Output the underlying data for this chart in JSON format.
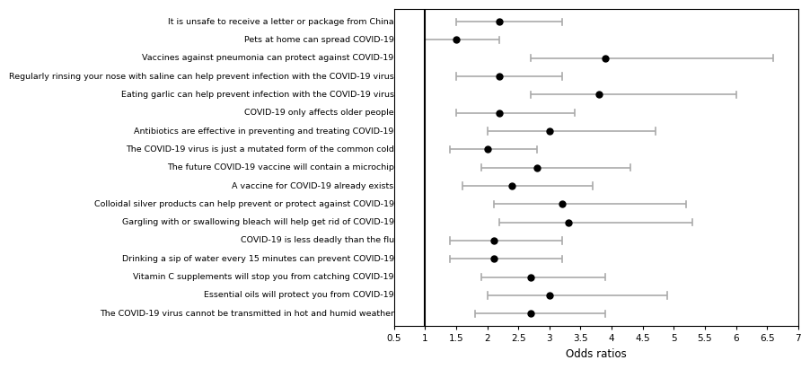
{
  "labels": [
    "It is unsafe to receive a letter or package from China",
    "Pets at home can spread COVID-19",
    "Vaccines against pneumonia can protect against COVID-19",
    "Regularly rinsing your nose with saline can help prevent infection with the COVID-19 virus",
    "Eating garlic can help prevent infection with the COVID-19 virus",
    "COVID-19 only affects older people",
    "Antibiotics are effective in preventing and treating COVID-19",
    "The COVID-19 virus is just a mutated form of the common cold",
    "The future COVID-19 vaccine will contain a microchip",
    "A vaccine for COVID-19 already exists",
    "Colloidal silver products can help prevent or protect against COVID-19",
    "Gargling with or swallowing bleach will help get rid of COVID-19",
    "COVID-19 is less deadly than the flu",
    "Drinking a sip of water every 15 minutes can prevent COVID-19",
    "Vitamin C supplements will stop you from catching COVID-19",
    "Essential oils will protect you from COVID-19",
    "The COVID-19 virus cannot be transmitted in hot and humid weather"
  ],
  "or": [
    2.2,
    1.5,
    3.9,
    2.2,
    3.8,
    2.2,
    3.0,
    2.0,
    2.8,
    2.4,
    3.2,
    3.3,
    2.1,
    2.1,
    2.7,
    3.0,
    2.7
  ],
  "ci_low": [
    1.5,
    1.0,
    2.7,
    1.5,
    2.7,
    1.5,
    2.0,
    1.4,
    1.9,
    1.6,
    2.1,
    2.2,
    1.4,
    1.4,
    1.9,
    2.0,
    1.8
  ],
  "ci_high": [
    3.2,
    2.2,
    6.6,
    3.2,
    6.0,
    3.4,
    4.7,
    2.8,
    4.3,
    3.7,
    5.2,
    5.3,
    3.2,
    3.2,
    3.9,
    4.9,
    3.9
  ],
  "xmin": 0.5,
  "xmax": 7.0,
  "xticks": [
    0.5,
    1.0,
    1.5,
    2.0,
    2.5,
    3.0,
    3.5,
    4.0,
    4.5,
    5.0,
    5.5,
    6.0,
    6.5,
    7.0
  ],
  "xtick_labels": [
    "0.5",
    "1",
    "1.5",
    "2",
    "2.5",
    "3",
    "3.5",
    "4",
    "4.5",
    "5",
    "5.5",
    "6",
    "6.5",
    "7"
  ],
  "ref_line": 1.0,
  "xlabel": "Odds ratios",
  "marker_color": "black",
  "marker_size": 5,
  "ci_color": "#aaaaaa",
  "ci_linewidth": 1.2,
  "cap_size": 0.18,
  "label_fontsize": 6.8,
  "tick_fontsize": 7.5,
  "xlabel_fontsize": 8.5
}
